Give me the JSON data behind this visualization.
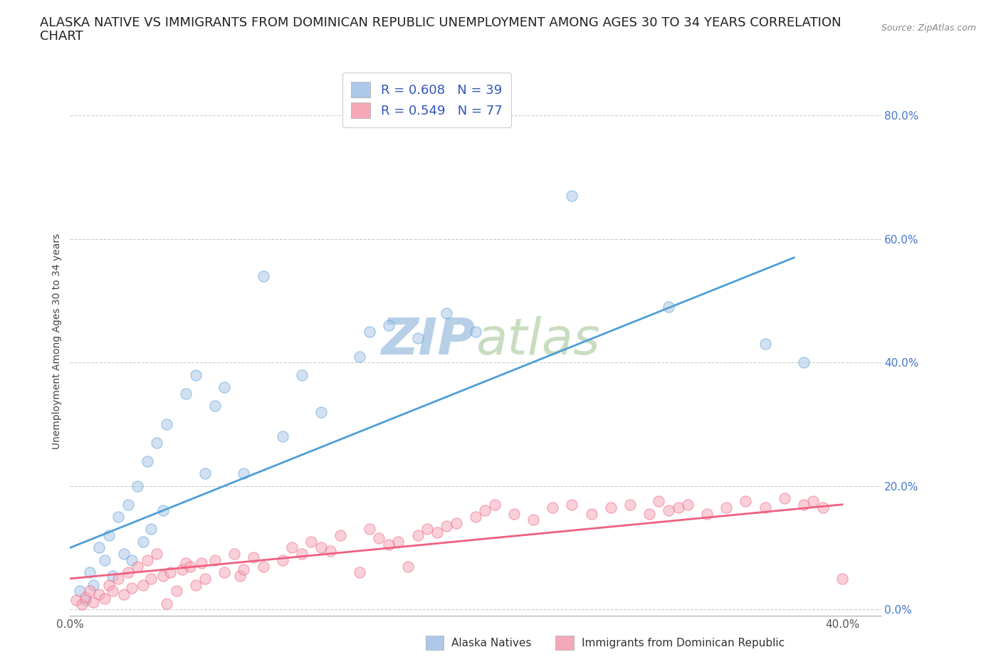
{
  "title_line1": "ALASKA NATIVE VS IMMIGRANTS FROM DOMINICAN REPUBLIC UNEMPLOYMENT AMONG AGES 30 TO 34 YEARS CORRELATION",
  "title_line2": "CHART",
  "source": "Source: ZipAtlas.com",
  "ylabel": "Unemployment Among Ages 30 to 34 years",
  "xlim": [
    0.0,
    0.42
  ],
  "ylim": [
    -0.01,
    0.88
  ],
  "xticks": [
    0.0,
    0.05,
    0.1,
    0.15,
    0.2,
    0.25,
    0.3,
    0.35,
    0.4
  ],
  "yticks": [
    0.0,
    0.2,
    0.4,
    0.6,
    0.8
  ],
  "ytick_labels": [
    "0.0%",
    "20.0%",
    "40.0%",
    "60.0%",
    "80.0%"
  ],
  "xtick_labels": [
    "0.0%",
    "",
    "",
    "",
    "",
    "",
    "",
    "",
    "40.0%"
  ],
  "legend_labels": [
    "Alaska Natives",
    "Immigrants from Dominican Republic"
  ],
  "legend_R": [
    "R = 0.608",
    "R = 0.549"
  ],
  "legend_N": [
    "N = 39",
    "N = 77"
  ],
  "color_blue": "#adc8e8",
  "color_pink": "#f5a8b8",
  "line_color_blue": "#4d9fd6",
  "line_color_pink": "#f06080",
  "watermark_zip": "ZIP",
  "watermark_atlas": "atlas",
  "blue_scatter_x": [
    0.005,
    0.008,
    0.01,
    0.012,
    0.015,
    0.018,
    0.02,
    0.022,
    0.025,
    0.028,
    0.03,
    0.032,
    0.035,
    0.038,
    0.04,
    0.042,
    0.045,
    0.048,
    0.05,
    0.06,
    0.065,
    0.07,
    0.075,
    0.08,
    0.09,
    0.1,
    0.11,
    0.12,
    0.13,
    0.15,
    0.155,
    0.165,
    0.18,
    0.195,
    0.21,
    0.26,
    0.31,
    0.36,
    0.38
  ],
  "blue_scatter_y": [
    0.03,
    0.015,
    0.06,
    0.04,
    0.1,
    0.08,
    0.12,
    0.055,
    0.15,
    0.09,
    0.17,
    0.08,
    0.2,
    0.11,
    0.24,
    0.13,
    0.27,
    0.16,
    0.3,
    0.35,
    0.38,
    0.22,
    0.33,
    0.36,
    0.22,
    0.54,
    0.28,
    0.38,
    0.32,
    0.41,
    0.45,
    0.46,
    0.44,
    0.48,
    0.45,
    0.67,
    0.49,
    0.43,
    0.4
  ],
  "pink_scatter_x": [
    0.003,
    0.006,
    0.008,
    0.01,
    0.012,
    0.015,
    0.018,
    0.02,
    0.022,
    0.025,
    0.028,
    0.03,
    0.032,
    0.035,
    0.038,
    0.04,
    0.042,
    0.045,
    0.048,
    0.05,
    0.052,
    0.055,
    0.058,
    0.06,
    0.062,
    0.065,
    0.068,
    0.07,
    0.075,
    0.08,
    0.085,
    0.088,
    0.09,
    0.095,
    0.1,
    0.11,
    0.115,
    0.12,
    0.125,
    0.13,
    0.135,
    0.14,
    0.15,
    0.155,
    0.16,
    0.165,
    0.17,
    0.175,
    0.18,
    0.185,
    0.19,
    0.195,
    0.2,
    0.21,
    0.215,
    0.22,
    0.23,
    0.24,
    0.25,
    0.26,
    0.27,
    0.28,
    0.29,
    0.3,
    0.305,
    0.31,
    0.315,
    0.32,
    0.33,
    0.34,
    0.35,
    0.36,
    0.37,
    0.38,
    0.385,
    0.39,
    0.4
  ],
  "pink_scatter_y": [
    0.015,
    0.008,
    0.02,
    0.03,
    0.012,
    0.025,
    0.018,
    0.04,
    0.03,
    0.05,
    0.025,
    0.06,
    0.035,
    0.07,
    0.04,
    0.08,
    0.05,
    0.09,
    0.055,
    0.01,
    0.06,
    0.03,
    0.065,
    0.075,
    0.07,
    0.04,
    0.075,
    0.05,
    0.08,
    0.06,
    0.09,
    0.055,
    0.065,
    0.085,
    0.07,
    0.08,
    0.1,
    0.09,
    0.11,
    0.1,
    0.095,
    0.12,
    0.06,
    0.13,
    0.115,
    0.105,
    0.11,
    0.07,
    0.12,
    0.13,
    0.125,
    0.135,
    0.14,
    0.15,
    0.16,
    0.17,
    0.155,
    0.145,
    0.165,
    0.17,
    0.155,
    0.165,
    0.17,
    0.155,
    0.175,
    0.16,
    0.165,
    0.17,
    0.155,
    0.165,
    0.175,
    0.165,
    0.18,
    0.17,
    0.175,
    0.165,
    0.05
  ],
  "blue_line_x": [
    0.0,
    0.375
  ],
  "blue_line_y": [
    0.1,
    0.57
  ],
  "pink_line_x": [
    0.0,
    0.4
  ],
  "pink_line_y": [
    0.05,
    0.17
  ],
  "background_color": "#ffffff",
  "grid_color": "#cccccc",
  "title_fontsize": 13,
  "axis_fontsize": 10,
  "tick_fontsize": 11,
  "scatter_size": 120,
  "scatter_alpha": 0.55,
  "line_width": 2.0
}
